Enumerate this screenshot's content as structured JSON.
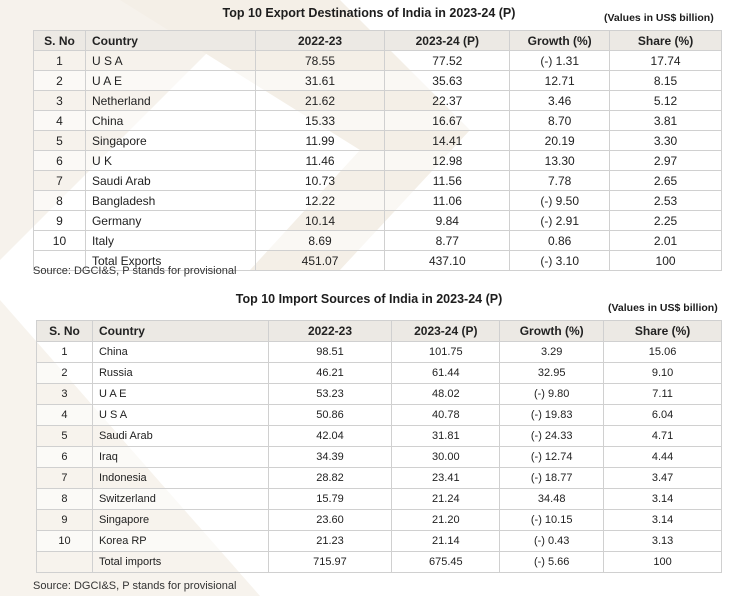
{
  "export_section": {
    "title": "Top 10 Export Destinations of India in 2023-24 (P)",
    "units": "(Values in US$ billion)",
    "headers": [
      "S. No",
      "Country",
      "2022-23",
      "2023-24 (P)",
      "Growth (%)",
      "Share (%)"
    ],
    "rows": [
      [
        "1",
        "U S A",
        "78.55",
        "77.52",
        "(-) 1.31",
        "17.74"
      ],
      [
        "2",
        "U A E",
        "31.61",
        "35.63",
        "12.71",
        "8.15"
      ],
      [
        "3",
        "Netherland",
        "21.62",
        "22.37",
        "3.46",
        "5.12"
      ],
      [
        "4",
        "China",
        "15.33",
        "16.67",
        "8.70",
        "3.81"
      ],
      [
        "5",
        "Singapore",
        "11.99",
        "14.41",
        "20.19",
        "3.30"
      ],
      [
        "6",
        "U K",
        "11.46",
        "12.98",
        "13.30",
        "2.97"
      ],
      [
        "7",
        "Saudi Arab",
        "10.73",
        "11.56",
        "7.78",
        "2.65"
      ],
      [
        "8",
        "Bangladesh",
        "12.22",
        "11.06",
        "(-) 9.50",
        "2.53"
      ],
      [
        "9",
        "Germany",
        "10.14",
        "9.84",
        "(-) 2.91",
        "2.25"
      ],
      [
        "10",
        "Italy",
        "8.69",
        "8.77",
        "0.86",
        "2.01"
      ],
      [
        "",
        "Total Exports",
        "451.07",
        "437.10",
        "(-) 3.10",
        "100"
      ]
    ],
    "source": "Source: DGCI&S, P stands for provisional"
  },
  "import_section": {
    "title": "Top 10 Import Sources of India in 2023-24 (P)",
    "units": "(Values in US$ billion)",
    "headers": [
      "S. No",
      "Country",
      "2022-23",
      "2023-24 (P)",
      "Growth (%)",
      "Share (%)"
    ],
    "rows": [
      [
        "1",
        "China",
        "98.51",
        "101.75",
        "3.29",
        "15.06"
      ],
      [
        "2",
        "Russia",
        "46.21",
        "61.44",
        "32.95",
        "9.10"
      ],
      [
        "3",
        "U A E",
        "53.23",
        "48.02",
        "(-) 9.80",
        "7.11"
      ],
      [
        "4",
        "U S A",
        "50.86",
        "40.78",
        "(-) 19.83",
        "6.04"
      ],
      [
        "5",
        "Saudi Arab",
        "42.04",
        "31.81",
        "(-) 24.33",
        "4.71"
      ],
      [
        "6",
        "Iraq",
        "34.39",
        "30.00",
        "(-) 12.74",
        "4.44"
      ],
      [
        "7",
        "Indonesia",
        "28.82",
        "23.41",
        "(-) 18.77",
        "3.47"
      ],
      [
        "8",
        "Switzerland",
        "15.79",
        "21.24",
        "34.48",
        "3.14"
      ],
      [
        "9",
        "Singapore",
        "23.60",
        "21.20",
        "(-) 10.15",
        "3.14"
      ],
      [
        "10",
        "Korea RP",
        "21.23",
        "21.14",
        "(-) 0.43",
        "3.13"
      ],
      [
        "",
        "Total imports",
        "715.97",
        "675.45",
        "(-) 5.66",
        "100"
      ]
    ],
    "source": "Source: DGCI&S, P stands for provisional"
  },
  "colors": {
    "header_bg": "#ece9e4",
    "decoration": "#f3efe8",
    "border": "#d0d0d0"
  }
}
